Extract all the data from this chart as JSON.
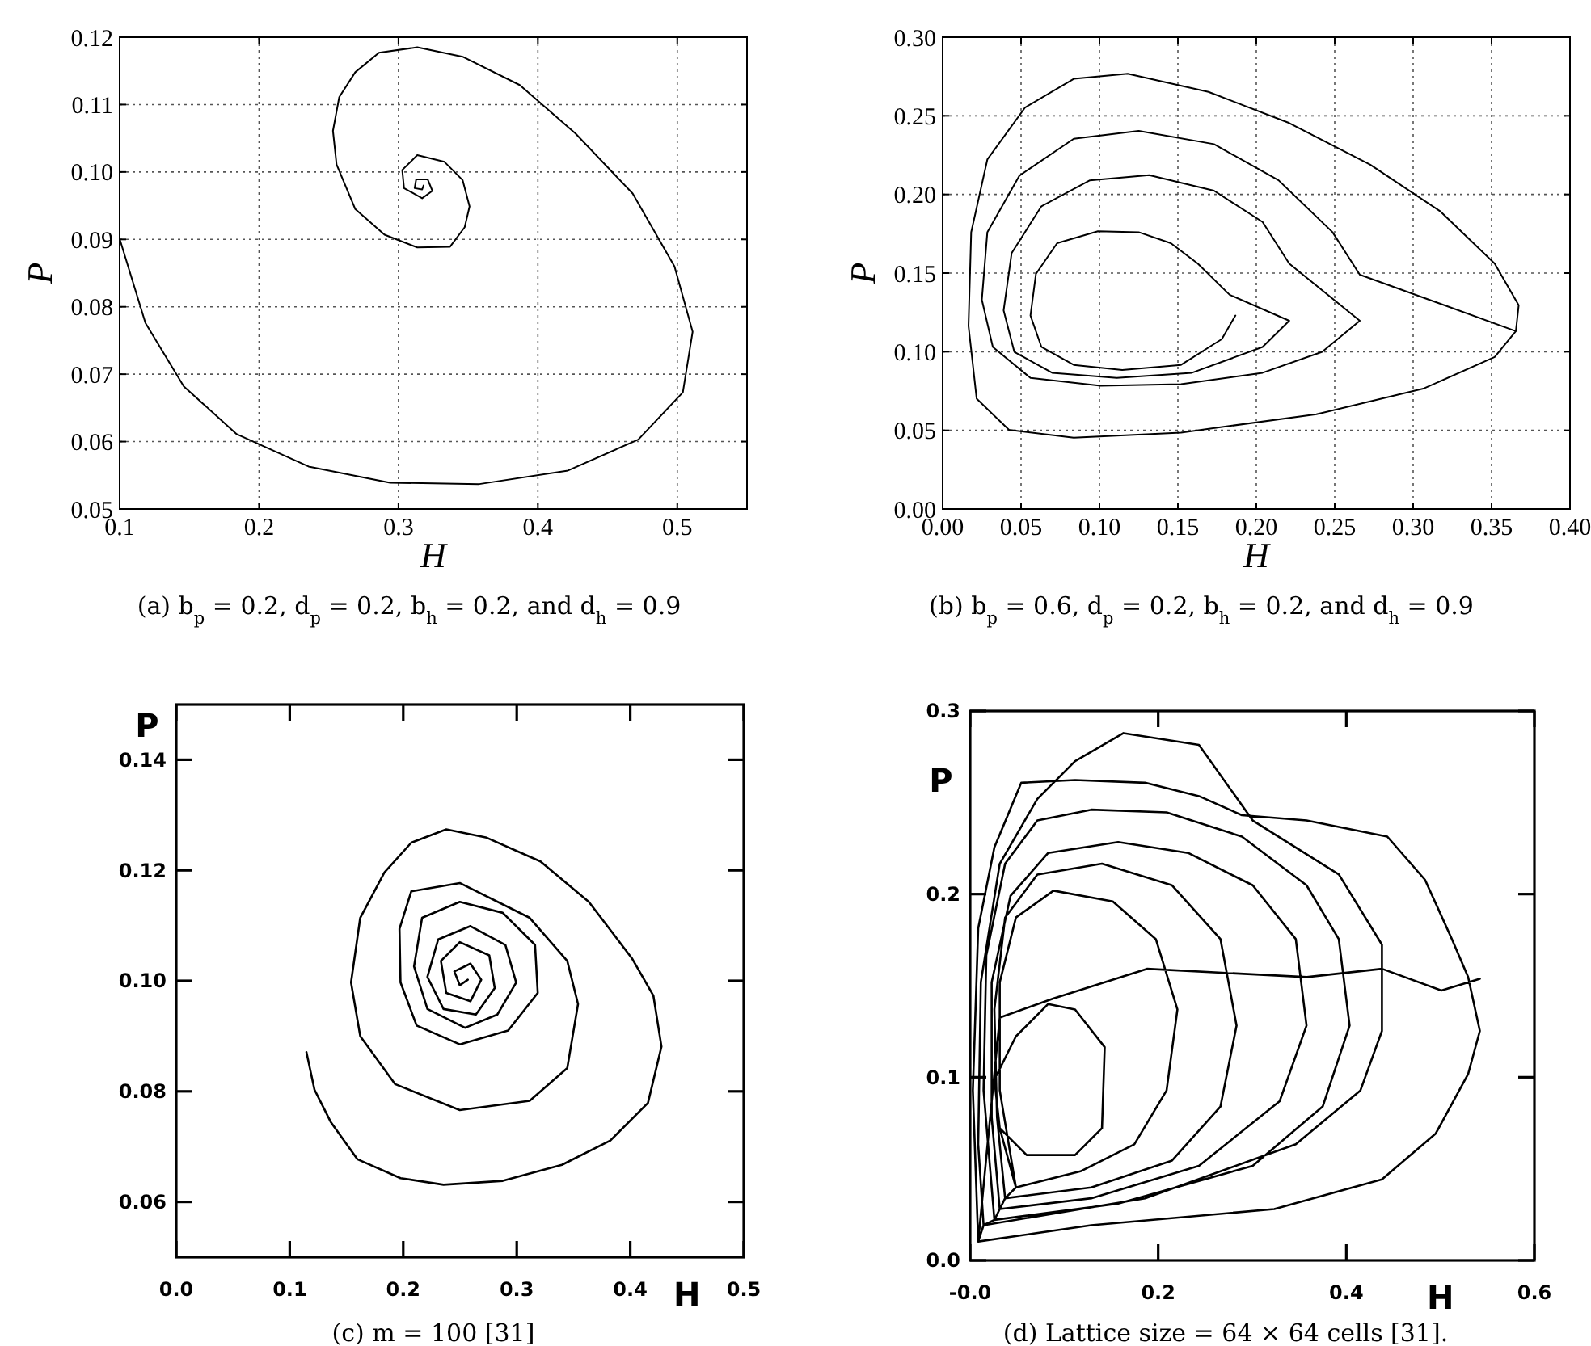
{
  "chart_data": [
    {
      "type": "line",
      "xlabel": "H",
      "ylabel": "P",
      "annotations": [
        "(a) b$_{p}$ = 0.2, d$_{p}$ = 0.2, b$_{h}$ = 0.2, and d$_{h}$ = 0.9"
      ],
      "xlim": [
        0.1,
        0.55
      ],
      "ylim": [
        0.05,
        0.12
      ],
      "xticks": [
        0.1,
        0.2,
        0.3,
        0.4,
        0.5
      ],
      "yticks": [
        0.05,
        0.06,
        0.07,
        0.08,
        0.09,
        {
          "value": 0.1,
          "label": "0.10"
        },
        0.11,
        0.12
      ],
      "grid": true,
      "line_style": "solid",
      "series": [
        {
          "color": "#000000",
          "x": [
            0.1,
            0.1185,
            0.146,
            0.184,
            0.2355,
            0.294,
            0.358,
            0.4216,
            0.472,
            0.504,
            0.511,
            0.498,
            0.468,
            0.427,
            0.387,
            0.346,
            0.3135,
            0.286,
            0.269,
            0.2575,
            0.253,
            0.2556,
            0.269,
            0.29,
            0.3135,
            0.337,
            0.3475,
            0.351,
            0.346,
            0.333,
            0.3135,
            0.3027,
            0.304,
            0.317,
            0.3243,
            0.321,
            0.3127,
            0.3116,
            0.317,
            0.318
          ],
          "values": [
            0.0901,
            0.0776,
            0.0682,
            0.0611,
            0.0563,
            0.0539,
            0.0537,
            0.0557,
            0.0603,
            0.0673,
            0.0763,
            0.086,
            0.0968,
            0.1057,
            0.1129,
            0.1171,
            0.1185,
            0.1177,
            0.1148,
            0.1111,
            0.1061,
            0.1011,
            0.0945,
            0.0907,
            0.0888,
            0.0889,
            0.0918,
            0.0949,
            0.0988,
            0.1015,
            0.1025,
            0.1003,
            0.0976,
            0.0961,
            0.0972,
            0.0989,
            0.0989,
            0.0976,
            0.0974,
            0.098
          ]
        }
      ]
    },
    {
      "type": "line",
      "xlabel": "H",
      "ylabel": "P",
      "annotations": [
        "(b) b$_{p}$ = 0.6, d$_{p}$ = 0.2, b$_{h}$ = 0.2, and d$_{h}$ = 0.9"
      ],
      "xlim": [
        0,
        0.4
      ],
      "ylim": [
        0,
        0.3
      ],
      "xticks": [
        {
          "value": 0,
          "label": "0.00"
        },
        0.05,
        {
          "value": 0.1,
          "label": "0.10"
        },
        0.15,
        {
          "value": 0.2,
          "label": "0.20"
        },
        0.25,
        {
          "value": 0.3,
          "label": "0.30"
        },
        0.35,
        {
          "value": 0.4,
          "label": "0.40"
        }
      ],
      "yticks": [
        {
          "value": 0,
          "label": "0.00"
        },
        0.05,
        {
          "value": 0.1,
          "label": "0.10"
        },
        0.15,
        {
          "value": 0.2,
          "label": "0.20"
        },
        0.25,
        {
          "value": 0.3,
          "label": "0.30"
        }
      ],
      "grid": true,
      "line_style": "solid",
      "series": [
        {
          "color": "#000000",
          "x": [
            0.1867,
            0.178,
            0.152,
            0.1145,
            0.0836,
            0.063,
            0.056,
            0.0595,
            0.073,
            0.099,
            0.125,
            0.1455,
            0.1627,
            0.183,
            0.221,
            0.204,
            0.159,
            0.111,
            0.0698,
            0.0457,
            0.0389,
            0.044,
            0.063,
            0.0939,
            0.1317,
            0.173,
            0.204,
            0.221,
            0.266,
            0.242,
            0.204,
            0.152,
            0.1008,
            0.056,
            0.032,
            0.025,
            0.0285,
            0.049,
            0.0836,
            0.125,
            0.173,
            0.2142,
            0.2486,
            0.266,
            0.3655,
            0.352,
            0.307,
            0.2383,
            0.152,
            0.0836,
            0.0423,
            0.0217,
            0.0165,
            0.0182,
            0.0285,
            0.0526,
            0.0836,
            0.118,
            0.1695,
            0.221,
            0.2727,
            0.3174,
            0.352,
            0.3673,
            0.3655
          ],
          "values": [
            0.123,
            0.108,
            0.0916,
            0.0883,
            0.0916,
            0.103,
            0.123,
            0.1495,
            0.169,
            0.1766,
            0.176,
            0.169,
            0.156,
            0.1362,
            0.1197,
            0.103,
            0.0866,
            0.0833,
            0.0866,
            0.0999,
            0.1263,
            0.1627,
            0.1925,
            0.209,
            0.2123,
            0.2024,
            0.1825,
            0.156,
            0.1197,
            0.0999,
            0.0866,
            0.0794,
            0.0784,
            0.0833,
            0.103,
            0.133,
            0.176,
            0.212,
            0.2354,
            0.2404,
            0.232,
            0.209,
            0.176,
            0.149,
            0.1131,
            0.0966,
            0.0767,
            0.0602,
            0.0486,
            0.0453,
            0.0503,
            0.0701,
            0.1164,
            0.1759,
            0.2222,
            0.2553,
            0.2735,
            0.2768,
            0.2652,
            0.2454,
            0.2189,
            0.1892,
            0.156,
            0.1296,
            0.1131
          ]
        }
      ]
    },
    {
      "type": "line",
      "xlabel": "H",
      "ylabel": "P",
      "annotations": [
        "(c) m = 100 [31]"
      ],
      "xlim": [
        0,
        0.5
      ],
      "ylim": [
        0.05,
        0.15
      ],
      "xticks": [
        {
          "value": 0,
          "label": "0.0"
        },
        0.1,
        0.2,
        0.3,
        0.4,
        0.5
      ],
      "yticks": [
        0.06,
        0.08,
        {
          "value": 0.1,
          "label": "0.10"
        },
        0.12,
        0.14
      ],
      "grid": false,
      "line_style": "solid",
      "series": [
        {
          "color": "#000000",
          "x": [
            0.1147,
            0.1218,
            0.136,
            0.1597,
            0.1976,
            0.2355,
            0.2877,
            0.3398,
            0.3825,
            0.4156,
            0.4275,
            0.4204,
            0.4014,
            0.3635,
            0.3209,
            0.2735,
            0.2379,
            0.2071,
            0.1834,
            0.1621,
            0.154,
            0.1621,
            0.1929,
            0.2498,
            0.3114,
            0.3445,
            0.354,
            0.3445,
            0.3114,
            0.2498,
            0.2071,
            0.1967,
            0.1976,
            0.2118,
            0.2498,
            0.2924,
            0.3185,
            0.3161,
            0.2877,
            0.2498,
            0.2166,
            0.2095,
            0.2213,
            0.2545,
            0.2829,
            0.2995,
            0.29,
            0.2592,
            0.2308,
            0.2213,
            0.2355,
            0.264,
            0.2806,
            0.2758,
            0.2498,
            0.2332,
            0.2379,
            0.2592,
            0.2687,
            0.2592,
            0.245,
            0.2498,
            0.2569
          ],
          "values": [
            0.0871,
            0.0803,
            0.0745,
            0.0677,
            0.0643,
            0.0631,
            0.0638,
            0.0667,
            0.0711,
            0.0779,
            0.0881,
            0.0973,
            0.1041,
            0.1143,
            0.1216,
            0.1259,
            0.1274,
            0.125,
            0.1196,
            0.1114,
            0.0997,
            0.09,
            0.0813,
            0.0766,
            0.0783,
            0.0842,
            0.0958,
            0.1036,
            0.1114,
            0.1177,
            0.1162,
            0.1094,
            0.0997,
            0.0919,
            0.0885,
            0.091,
            0.0978,
            0.1065,
            0.1123,
            0.1143,
            0.1114,
            0.1026,
            0.0949,
            0.0915,
            0.0939,
            0.0997,
            0.1065,
            0.1099,
            0.1075,
            0.1007,
            0.0949,
            0.0939,
            0.0987,
            0.1046,
            0.107,
            0.1036,
            0.0978,
            0.0963,
            0.1002,
            0.1031,
            0.1017,
            0.0992,
            0.1002
          ]
        }
      ]
    },
    {
      "type": "line",
      "xlabel": "H",
      "ylabel": "P",
      "annotations": [
        "(d) Lattice size = 64 × 64 cells [31]."
      ],
      "xlim": [
        0,
        0.6
      ],
      "ylim": [
        0,
        0.3
      ],
      "xticks": [
        {
          "value": 0,
          "label": "-0.0"
        },
        0.2,
        0.4,
        0.6
      ],
      "yticks": [
        {
          "value": 0,
          "label": "0.0"
        },
        0.1,
        0.2,
        0.3
      ],
      "grid": false,
      "line_style": "solid",
      "series": [
        {
          "color": "#000000",
          "x": [
            0.0315,
            0.0601,
            0.1116,
            0.1402,
            0.1431,
            0.1116,
            0.083,
            0.0487,
            0.0258,
            0.0315,
            0.0487,
            0.1173,
            0.1746,
            0.2089,
            0.2204,
            0.1975,
            0.1517,
            0.0887,
            0.0487,
            0.0315,
            0.0315,
            0.0487,
            0.0372,
            0.1288,
            0.2147,
            0.2662,
            0.2833,
            0.2662,
            0.2147,
            0.1402,
            0.0715,
            0.0372,
            0.0258,
            0.0286,
            0.0372,
            0.0315,
            0.1288,
            0.2433,
            0.3291,
            0.3577,
            0.3463,
            0.3005,
            0.2318,
            0.1574,
            0.083,
            0.0429,
            0.0229,
            0.0229,
            0.0315,
            0.0258,
            0.1574,
            0.3005,
            0.3749,
            0.4035,
            0.392,
            0.3577,
            0.289,
            0.2089,
            0.1288,
            0.0715,
            0.0372,
            0.0172,
            0.0143,
            0.0258,
            0.0143,
            0.186,
            0.3463,
            0.415,
            0.4379,
            0.4379,
            0.3921,
            0.3005,
            0.2433,
            0.1631,
            0.1116,
            0.0715,
            0.0315,
            0.0114,
            0.0086,
            0.0143,
            0.0086,
            0.1288,
            0.3234,
            0.4379,
            0.4951,
            0.5295,
            0.542,
            0.5295,
            0.5123,
            0.4837,
            0.4436,
            0.3577,
            0.289,
            0.2433,
            0.186,
            0.1116,
            0.0544,
            0.0258,
            0.0086,
            0.0029,
            0.0086,
            0.0315,
            0.0882,
            0.188,
            0.358,
            0.438,
            0.501,
            0.542
          ],
          "values": [
            0.0722,
            0.0575,
            0.0575,
            0.0722,
            0.1164,
            0.137,
            0.14,
            0.1223,
            0.0987,
            0.0722,
            0.0398,
            0.0486,
            0.0634,
            0.0928,
            0.137,
            0.1754,
            0.196,
            0.2019,
            0.1872,
            0.1518,
            0.0928,
            0.0398,
            0.0339,
            0.0398,
            0.0545,
            0.084,
            0.1282,
            0.1754,
            0.2048,
            0.2166,
            0.2107,
            0.1872,
            0.1371,
            0.0781,
            0.0339,
            0.028,
            0.0339,
            0.0516,
            0.0869,
            0.1282,
            0.1754,
            0.2048,
            0.2225,
            0.2284,
            0.2225,
            0.199,
            0.1518,
            0.0781,
            0.028,
            0.0221,
            0.031,
            0.0516,
            0.084,
            0.1282,
            0.1754,
            0.2048,
            0.2314,
            0.2446,
            0.2461,
            0.2402,
            0.2166,
            0.1665,
            0.0928,
            0.0221,
            0.0192,
            0.0339,
            0.0634,
            0.0928,
            0.1253,
            0.1724,
            0.2107,
            0.2402,
            0.2815,
            0.2879,
            0.2726,
            0.252,
            0.2166,
            0.1518,
            0.0634,
            0.0192,
            0.0103,
            0.0192,
            0.028,
            0.0442,
            0.0693,
            0.1017,
            0.1253,
            0.1547,
            0.1754,
            0.2078,
            0.2314,
            0.2402,
            0.2431,
            0.2535,
            0.2608,
            0.2623,
            0.2608,
            0.2255,
            0.1813,
            0.0928,
            0.0103,
            0.1326,
            0.1429,
            0.1592,
            0.1547,
            0.1592,
            0.1474,
            0.1538
          ]
        }
      ]
    }
  ]
}
